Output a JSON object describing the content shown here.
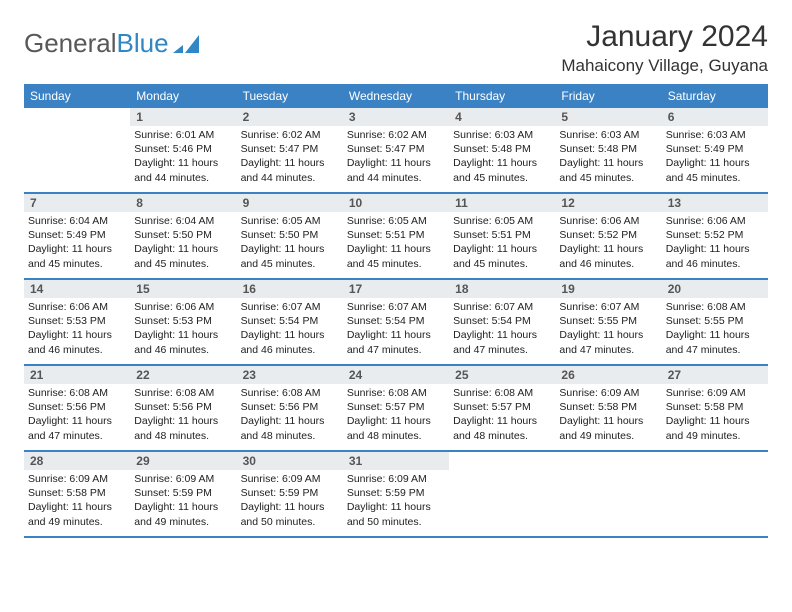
{
  "logo": {
    "textA": "General",
    "textB": "Blue"
  },
  "title": "January 2024",
  "location": "Mahaicony Village, Guyana",
  "colors": {
    "header_bg": "#3b82c4",
    "header_fg": "#ffffff",
    "daynum_bg": "#e9ecef",
    "text": "#212121"
  },
  "dayNames": [
    "Sunday",
    "Monday",
    "Tuesday",
    "Wednesday",
    "Thursday",
    "Friday",
    "Saturday"
  ],
  "weeks": [
    [
      null,
      {
        "n": "1",
        "sr": "Sunrise: 6:01 AM",
        "ss": "Sunset: 5:46 PM",
        "d1": "Daylight: 11 hours",
        "d2": "and 44 minutes."
      },
      {
        "n": "2",
        "sr": "Sunrise: 6:02 AM",
        "ss": "Sunset: 5:47 PM",
        "d1": "Daylight: 11 hours",
        "d2": "and 44 minutes."
      },
      {
        "n": "3",
        "sr": "Sunrise: 6:02 AM",
        "ss": "Sunset: 5:47 PM",
        "d1": "Daylight: 11 hours",
        "d2": "and 44 minutes."
      },
      {
        "n": "4",
        "sr": "Sunrise: 6:03 AM",
        "ss": "Sunset: 5:48 PM",
        "d1": "Daylight: 11 hours",
        "d2": "and 45 minutes."
      },
      {
        "n": "5",
        "sr": "Sunrise: 6:03 AM",
        "ss": "Sunset: 5:48 PM",
        "d1": "Daylight: 11 hours",
        "d2": "and 45 minutes."
      },
      {
        "n": "6",
        "sr": "Sunrise: 6:03 AM",
        "ss": "Sunset: 5:49 PM",
        "d1": "Daylight: 11 hours",
        "d2": "and 45 minutes."
      }
    ],
    [
      {
        "n": "7",
        "sr": "Sunrise: 6:04 AM",
        "ss": "Sunset: 5:49 PM",
        "d1": "Daylight: 11 hours",
        "d2": "and 45 minutes."
      },
      {
        "n": "8",
        "sr": "Sunrise: 6:04 AM",
        "ss": "Sunset: 5:50 PM",
        "d1": "Daylight: 11 hours",
        "d2": "and 45 minutes."
      },
      {
        "n": "9",
        "sr": "Sunrise: 6:05 AM",
        "ss": "Sunset: 5:50 PM",
        "d1": "Daylight: 11 hours",
        "d2": "and 45 minutes."
      },
      {
        "n": "10",
        "sr": "Sunrise: 6:05 AM",
        "ss": "Sunset: 5:51 PM",
        "d1": "Daylight: 11 hours",
        "d2": "and 45 minutes."
      },
      {
        "n": "11",
        "sr": "Sunrise: 6:05 AM",
        "ss": "Sunset: 5:51 PM",
        "d1": "Daylight: 11 hours",
        "d2": "and 45 minutes."
      },
      {
        "n": "12",
        "sr": "Sunrise: 6:06 AM",
        "ss": "Sunset: 5:52 PM",
        "d1": "Daylight: 11 hours",
        "d2": "and 46 minutes."
      },
      {
        "n": "13",
        "sr": "Sunrise: 6:06 AM",
        "ss": "Sunset: 5:52 PM",
        "d1": "Daylight: 11 hours",
        "d2": "and 46 minutes."
      }
    ],
    [
      {
        "n": "14",
        "sr": "Sunrise: 6:06 AM",
        "ss": "Sunset: 5:53 PM",
        "d1": "Daylight: 11 hours",
        "d2": "and 46 minutes."
      },
      {
        "n": "15",
        "sr": "Sunrise: 6:06 AM",
        "ss": "Sunset: 5:53 PM",
        "d1": "Daylight: 11 hours",
        "d2": "and 46 minutes."
      },
      {
        "n": "16",
        "sr": "Sunrise: 6:07 AM",
        "ss": "Sunset: 5:54 PM",
        "d1": "Daylight: 11 hours",
        "d2": "and 46 minutes."
      },
      {
        "n": "17",
        "sr": "Sunrise: 6:07 AM",
        "ss": "Sunset: 5:54 PM",
        "d1": "Daylight: 11 hours",
        "d2": "and 47 minutes."
      },
      {
        "n": "18",
        "sr": "Sunrise: 6:07 AM",
        "ss": "Sunset: 5:54 PM",
        "d1": "Daylight: 11 hours",
        "d2": "and 47 minutes."
      },
      {
        "n": "19",
        "sr": "Sunrise: 6:07 AM",
        "ss": "Sunset: 5:55 PM",
        "d1": "Daylight: 11 hours",
        "d2": "and 47 minutes."
      },
      {
        "n": "20",
        "sr": "Sunrise: 6:08 AM",
        "ss": "Sunset: 5:55 PM",
        "d1": "Daylight: 11 hours",
        "d2": "and 47 minutes."
      }
    ],
    [
      {
        "n": "21",
        "sr": "Sunrise: 6:08 AM",
        "ss": "Sunset: 5:56 PM",
        "d1": "Daylight: 11 hours",
        "d2": "and 47 minutes."
      },
      {
        "n": "22",
        "sr": "Sunrise: 6:08 AM",
        "ss": "Sunset: 5:56 PM",
        "d1": "Daylight: 11 hours",
        "d2": "and 48 minutes."
      },
      {
        "n": "23",
        "sr": "Sunrise: 6:08 AM",
        "ss": "Sunset: 5:56 PM",
        "d1": "Daylight: 11 hours",
        "d2": "and 48 minutes."
      },
      {
        "n": "24",
        "sr": "Sunrise: 6:08 AM",
        "ss": "Sunset: 5:57 PM",
        "d1": "Daylight: 11 hours",
        "d2": "and 48 minutes."
      },
      {
        "n": "25",
        "sr": "Sunrise: 6:08 AM",
        "ss": "Sunset: 5:57 PM",
        "d1": "Daylight: 11 hours",
        "d2": "and 48 minutes."
      },
      {
        "n": "26",
        "sr": "Sunrise: 6:09 AM",
        "ss": "Sunset: 5:58 PM",
        "d1": "Daylight: 11 hours",
        "d2": "and 49 minutes."
      },
      {
        "n": "27",
        "sr": "Sunrise: 6:09 AM",
        "ss": "Sunset: 5:58 PM",
        "d1": "Daylight: 11 hours",
        "d2": "and 49 minutes."
      }
    ],
    [
      {
        "n": "28",
        "sr": "Sunrise: 6:09 AM",
        "ss": "Sunset: 5:58 PM",
        "d1": "Daylight: 11 hours",
        "d2": "and 49 minutes."
      },
      {
        "n": "29",
        "sr": "Sunrise: 6:09 AM",
        "ss": "Sunset: 5:59 PM",
        "d1": "Daylight: 11 hours",
        "d2": "and 49 minutes."
      },
      {
        "n": "30",
        "sr": "Sunrise: 6:09 AM",
        "ss": "Sunset: 5:59 PM",
        "d1": "Daylight: 11 hours",
        "d2": "and 50 minutes."
      },
      {
        "n": "31",
        "sr": "Sunrise: 6:09 AM",
        "ss": "Sunset: 5:59 PM",
        "d1": "Daylight: 11 hours",
        "d2": "and 50 minutes."
      },
      null,
      null,
      null
    ]
  ]
}
